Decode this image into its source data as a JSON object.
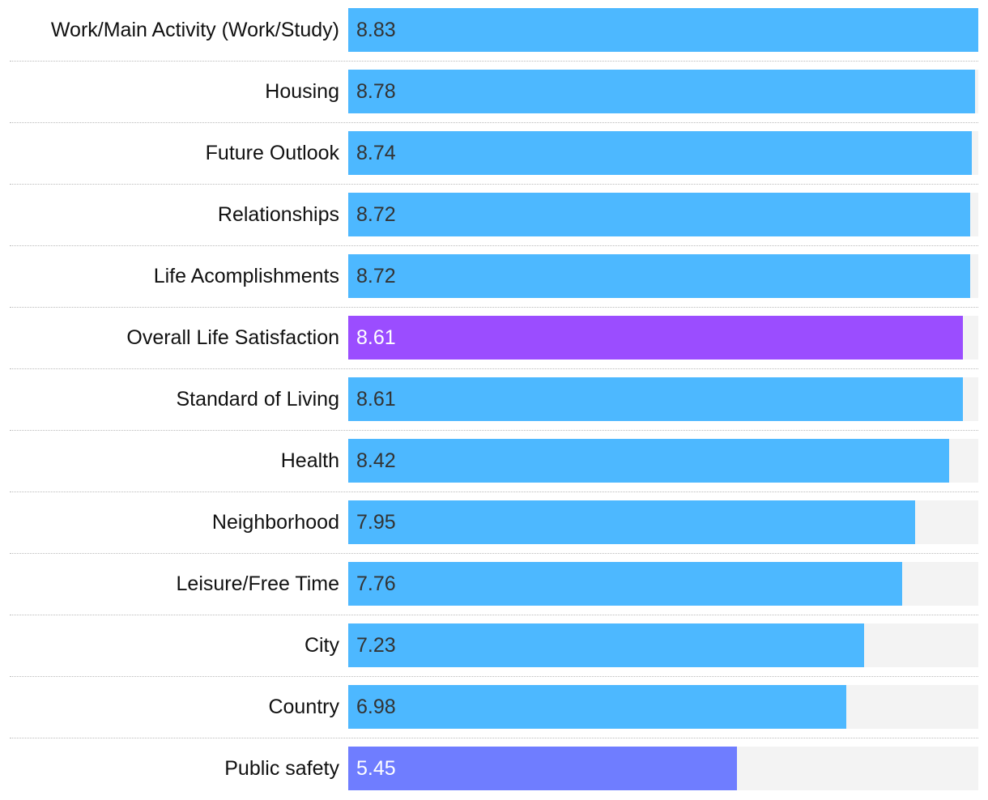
{
  "chart_data": {
    "type": "bar",
    "orientation": "horizontal",
    "xlim": [
      0,
      8.83
    ],
    "grid": false,
    "legend": "none",
    "categories": [
      "Work/Main Activity (Work/Study)",
      "Housing",
      "Future Outlook",
      "Relationships",
      "Life Acomplishments",
      "Overall Life Satisfaction",
      "Standard of Living",
      "Health",
      "Neighborhood",
      "Leisure/Free Time",
      "City",
      "Country",
      "Public safety"
    ],
    "values": [
      8.83,
      8.78,
      8.74,
      8.72,
      8.72,
      8.61,
      8.61,
      8.42,
      7.95,
      7.76,
      7.23,
      6.98,
      5.45
    ],
    "value_labels": [
      "8.83",
      "8.78",
      "8.74",
      "8.72",
      "8.72",
      "8.61",
      "8.61",
      "8.42",
      "7.95",
      "7.76",
      "7.23",
      "6.98",
      "5.45"
    ],
    "colors": {
      "default_bar": "#4db8ff",
      "highlight_bar": "#9b4dff",
      "low_bar": "#6f7dff",
      "track": "#f3f3f3",
      "default_value_text": "#333333",
      "highlight_value_text": "#ffffff"
    },
    "bar_colors": [
      "#4db8ff",
      "#4db8ff",
      "#4db8ff",
      "#4db8ff",
      "#4db8ff",
      "#9b4dff",
      "#4db8ff",
      "#4db8ff",
      "#4db8ff",
      "#4db8ff",
      "#4db8ff",
      "#4db8ff",
      "#6f7dff"
    ],
    "value_text_colors": [
      "#333333",
      "#333333",
      "#333333",
      "#333333",
      "#333333",
      "#ffffff",
      "#333333",
      "#333333",
      "#333333",
      "#333333",
      "#333333",
      "#333333",
      "#ffffff"
    ]
  }
}
